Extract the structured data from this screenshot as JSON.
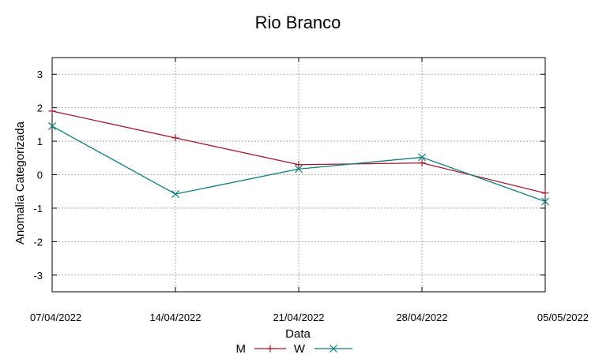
{
  "chart_data": {
    "type": "line",
    "title": "Rio Branco",
    "xlabel": "Data",
    "ylabel": "Anomalia Categorizada",
    "x": [
      "07/04/2022",
      "14/04/2022",
      "21/04/2022",
      "28/04/2022",
      "05/05/2022"
    ],
    "ylim": [
      -3.5,
      3.5
    ],
    "yticks": [
      "3",
      "2",
      "1",
      "0",
      "-1",
      "-2",
      "-3"
    ],
    "ytick_values": [
      3,
      2,
      1,
      0,
      -1,
      -2,
      -3
    ],
    "grid": true,
    "legend_placement": "bottom-center",
    "series": [
      {
        "name": "M",
        "color": "#a0192b",
        "marker": "plus",
        "values": [
          1.9,
          1.1,
          0.3,
          0.35,
          -0.55
        ]
      },
      {
        "name": "W",
        "color": "#117a7a",
        "marker": "cross",
        "values": [
          1.45,
          -0.58,
          0.17,
          0.52,
          -0.8
        ]
      }
    ]
  }
}
